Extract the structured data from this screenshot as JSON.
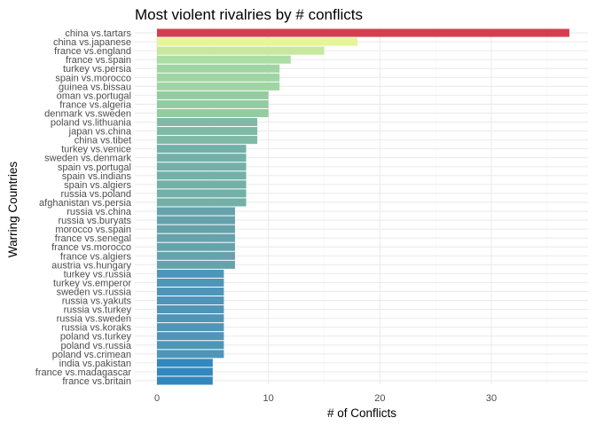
{
  "chart_data": {
    "type": "bar",
    "orientation": "horizontal",
    "title": "Most violent rivalries by # conflicts",
    "xlabel": "# of Conflicts",
    "ylabel": "Warring Countries",
    "xlim": [
      0,
      38
    ],
    "xticks": [
      0,
      10,
      20,
      30
    ],
    "grid": true,
    "legend": "none",
    "categories": [
      "china vs.tartars",
      "china vs.japanese",
      "france vs.england",
      "france vs.spain",
      "turkey vs.persia",
      "spain vs.morocco",
      "guinea vs.bissau",
      "oman vs.portugal",
      "france vs.algeria",
      "denmark vs.sweden",
      "poland vs.lithuania",
      "japan vs.china",
      "china vs.tibet",
      "turkey vs.venice",
      "sweden vs.denmark",
      "spain vs.portugal",
      "spain vs.indians",
      "spain vs.algiers",
      "russia vs.poland",
      "afghanistan vs.persia",
      "russia vs.china",
      "russia vs.buryats",
      "morocco vs.spain",
      "france vs.senegal",
      "france vs.morocco",
      "france vs.algiers",
      "austria vs.hungary",
      "turkey vs.russia",
      "turkey vs.emperor",
      "sweden vs.russia",
      "russia vs.yakuts",
      "russia vs.turkey",
      "russia vs.sweden",
      "russia vs.koraks",
      "poland vs.turkey",
      "poland vs.russia",
      "poland vs.crimean",
      "india vs.pakistan",
      "france vs.madagascar",
      "france vs.britain"
    ],
    "values": [
      37,
      18,
      15,
      12,
      11,
      11,
      11,
      10,
      10,
      10,
      9,
      9,
      9,
      8,
      8,
      8,
      8,
      8,
      8,
      8,
      7,
      7,
      7,
      7,
      7,
      7,
      7,
      6,
      6,
      6,
      6,
      6,
      6,
      6,
      6,
      6,
      6,
      5,
      5,
      5
    ],
    "colors": {
      "37": "#d53e4f",
      "18": "#e6f598",
      "15": "#c7e89e",
      "12": "#abdda4",
      "11": "#9fd5a3",
      "10": "#94cca2",
      "9": "#7fbaa6",
      "8": "#72b0a8",
      "7": "#66a2ab",
      "6": "#4f95b8",
      "5": "#3288bd"
    }
  }
}
